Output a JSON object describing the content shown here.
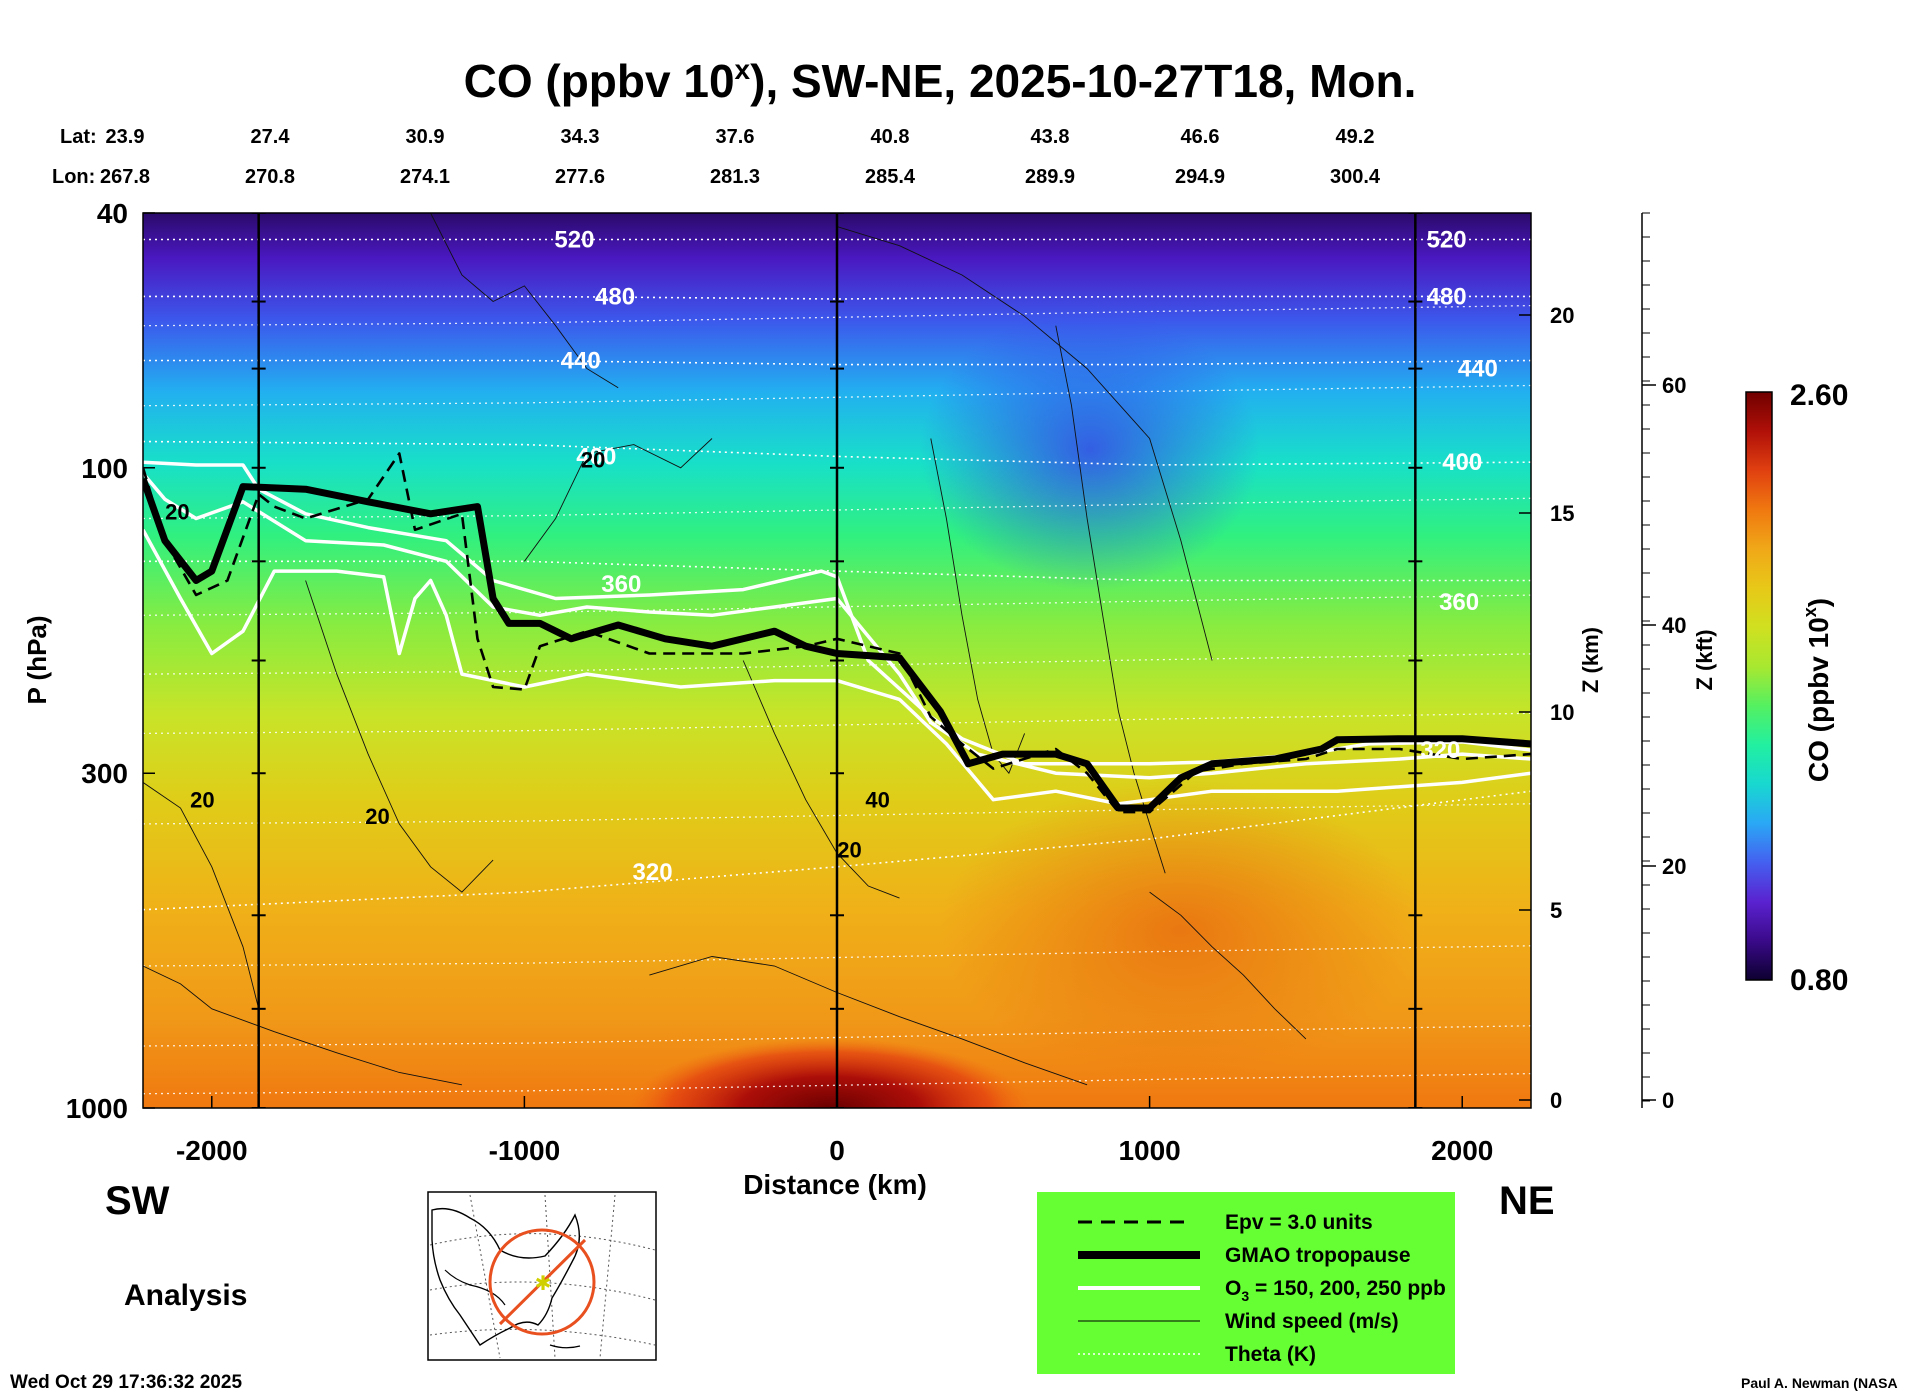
{
  "title": {
    "prefix": "CO (ppbv 10",
    "sup": "x",
    "suffix": "), SW-NE, 2025-10-27T18, Mon."
  },
  "coords": {
    "lat_label": "Lat:",
    "lon_label": "Lon:",
    "lat": [
      "23.9",
      "27.4",
      "30.9",
      "34.3",
      "37.6",
      "40.8",
      "43.8",
      "46.6",
      "49.2"
    ],
    "lon": [
      "267.8",
      "270.8",
      "274.1",
      "277.6",
      "281.3",
      "285.4",
      "289.9",
      "294.9",
      "300.4"
    ]
  },
  "direction": {
    "left": "SW",
    "right": "NE"
  },
  "analysis_label": "Analysis",
  "timestamp": "Wed Oct 29 17:36:32 2025",
  "credit": "Paul A. Newman (NASA",
  "legend": {
    "items": [
      {
        "label": "Epv = 3.0 units",
        "style": "dashed"
      },
      {
        "label": "GMAO tropopause",
        "style": "thick"
      },
      {
        "label": "O",
        "sub": "3",
        "label_rest": " = 150, 200, 250 ppb",
        "style": "white"
      },
      {
        "label": "Wind speed (m/s)",
        "style": "thin"
      },
      {
        "label": "Theta (K)",
        "style": "dotted"
      }
    ],
    "background": "#66ff33"
  },
  "colorbar": {
    "max_label": "2.60",
    "min_label": "0.80",
    "title_prefix": "CO (ppbv 10",
    "title_sup": "x",
    "title_suffix": ")",
    "colors": [
      "#0d0030",
      "#3a0a8a",
      "#5a22d0",
      "#4460f0",
      "#2aa8f5",
      "#18d8d0",
      "#22f0a0",
      "#55f060",
      "#a8e830",
      "#d0e020",
      "#e8c818",
      "#f0a818",
      "#f07810",
      "#e04010",
      "#b01008",
      "#700000"
    ]
  },
  "chart_data": {
    "type": "heatmap",
    "title": "CO (ppbv 10^x), SW-NE, 2025-10-27T18, Mon.",
    "xlabel": "Distance (km)",
    "ylabel": "P (hPa)",
    "y2label": "Z (km)",
    "y3label": "Z (kft)",
    "x_range": [
      -2220,
      2220
    ],
    "y_range_hpa": [
      1000,
      40
    ],
    "y_scale": "log",
    "x_ticks": [
      -2000,
      -1000,
      0,
      1000,
      2000
    ],
    "x_tick_labels": [
      "-2000",
      "-1000",
      "0",
      "1000",
      "2000"
    ],
    "y_ticks": [
      1000,
      300,
      100,
      40
    ],
    "y_tick_labels": [
      "1000",
      "300",
      "100",
      "40"
    ],
    "z_km_ticks": [
      "0",
      "5",
      "10",
      "15",
      "20"
    ],
    "z_kft_ticks": [
      "0",
      "20",
      "40",
      "60"
    ],
    "colorbar_range": [
      0.8,
      2.6
    ],
    "vertical_lines_km": [
      -1850,
      0,
      1850
    ],
    "theta_contours": [
      {
        "label": "520",
        "points": [
          [
            -2220,
            44
          ],
          [
            -1000,
            44
          ],
          [
            0,
            44
          ],
          [
            1000,
            44
          ],
          [
            2220,
            44
          ]
        ]
      },
      {
        "label": "480",
        "points": [
          [
            -2220,
            54
          ],
          [
            -1000,
            54
          ],
          [
            0,
            54.5
          ],
          [
            1000,
            54
          ],
          [
            2220,
            54
          ]
        ]
      },
      {
        "label": "440",
        "points": [
          [
            -2220,
            68
          ],
          [
            -1000,
            68
          ],
          [
            0,
            69
          ],
          [
            1000,
            69
          ],
          [
            2220,
            68
          ]
        ]
      },
      {
        "label": "400",
        "points": [
          [
            -2220,
            91
          ],
          [
            -1000,
            92
          ],
          [
            0,
            96
          ],
          [
            1000,
            99
          ],
          [
            2220,
            98
          ]
        ]
      },
      {
        "label": "360",
        "points": [
          [
            -2220,
            140
          ],
          [
            -1000,
            140
          ],
          [
            0,
            145
          ],
          [
            1000,
            150
          ],
          [
            2220,
            150
          ]
        ]
      },
      {
        "label": "320",
        "points": [
          [
            -2220,
            490
          ],
          [
            -1000,
            460
          ],
          [
            0,
            420
          ],
          [
            1000,
            380
          ],
          [
            2220,
            320
          ]
        ]
      }
    ],
    "contour_labels": [
      {
        "text": "520",
        "x": -840,
        "y": 44
      },
      {
        "text": "480",
        "x": -710,
        "y": 54
      },
      {
        "text": "440",
        "x": -820,
        "y": 68
      },
      {
        "text": "400",
        "x": -770,
        "y": 96
      },
      {
        "text": "360",
        "x": -690,
        "y": 152
      },
      {
        "text": "320",
        "x": -590,
        "y": 428
      },
      {
        "text": "520",
        "x": 1950,
        "y": 44
      },
      {
        "text": "480",
        "x": 1950,
        "y": 54
      },
      {
        "text": "440",
        "x": 2050,
        "y": 70
      },
      {
        "text": "400",
        "x": 2000,
        "y": 98
      },
      {
        "text": "360",
        "x": 1990,
        "y": 162
      },
      {
        "text": "320",
        "x": 1930,
        "y": 276
      }
    ],
    "wind_labels": [
      {
        "text": "20",
        "x": -2110,
        "y": 117
      },
      {
        "text": "20",
        "x": -780,
        "y": 97
      },
      {
        "text": "20",
        "x": -2030,
        "y": 330
      },
      {
        "text": "20",
        "x": -1470,
        "y": 350
      },
      {
        "text": "40",
        "x": 130,
        "y": 330
      },
      {
        "text": "20",
        "x": 40,
        "y": 395
      }
    ],
    "tropopause": [
      [
        -2220,
        104
      ],
      [
        -2150,
        130
      ],
      [
        -2050,
        150
      ],
      [
        -2000,
        145
      ],
      [
        -1900,
        107
      ],
      [
        -1700,
        108
      ],
      [
        -1500,
        113
      ],
      [
        -1300,
        118
      ],
      [
        -1150,
        115
      ],
      [
        -1100,
        160
      ],
      [
        -1050,
        175
      ],
      [
        -950,
        175
      ],
      [
        -850,
        185
      ],
      [
        -700,
        176
      ],
      [
        -550,
        185
      ],
      [
        -400,
        190
      ],
      [
        -200,
        180
      ],
      [
        -100,
        190
      ],
      [
        0,
        195
      ],
      [
        200,
        198
      ],
      [
        330,
        240
      ],
      [
        420,
        290
      ],
      [
        530,
        280
      ],
      [
        700,
        280
      ],
      [
        800,
        290
      ],
      [
        900,
        340
      ],
      [
        1000,
        340
      ],
      [
        1100,
        305
      ],
      [
        1200,
        290
      ],
      [
        1400,
        285
      ],
      [
        1550,
        275
      ],
      [
        1600,
        266
      ],
      [
        1800,
        265
      ],
      [
        2000,
        265
      ],
      [
        2220,
        270
      ]
    ],
    "epv": [
      [
        -2220,
        100
      ],
      [
        -2150,
        130
      ],
      [
        -2050,
        158
      ],
      [
        -1950,
        150
      ],
      [
        -1850,
        110
      ],
      [
        -1800,
        115
      ],
      [
        -1700,
        120
      ],
      [
        -1500,
        112
      ],
      [
        -1400,
        95
      ],
      [
        -1350,
        125
      ],
      [
        -1200,
        118
      ],
      [
        -1150,
        185
      ],
      [
        -1100,
        220
      ],
      [
        -1000,
        222
      ],
      [
        -950,
        190
      ],
      [
        -800,
        180
      ],
      [
        -600,
        195
      ],
      [
        -300,
        195
      ],
      [
        -100,
        190
      ],
      [
        0,
        185
      ],
      [
        100,
        190
      ],
      [
        200,
        195
      ],
      [
        300,
        245
      ],
      [
        400,
        270
      ],
      [
        500,
        295
      ],
      [
        700,
        275
      ],
      [
        800,
        300
      ],
      [
        900,
        345
      ],
      [
        1000,
        345
      ],
      [
        1150,
        298
      ],
      [
        1300,
        290
      ],
      [
        1500,
        285
      ],
      [
        1600,
        275
      ],
      [
        1800,
        275
      ],
      [
        2000,
        285
      ],
      [
        2220,
        280
      ]
    ],
    "o3_lines": [
      [
        [
          -2220,
          98
        ],
        [
          -2050,
          99
        ],
        [
          -1900,
          99
        ],
        [
          -1850,
          108
        ],
        [
          -1700,
          118
        ],
        [
          -1500,
          124
        ],
        [
          -1250,
          130
        ],
        [
          -1100,
          150
        ],
        [
          -900,
          160
        ],
        [
          -600,
          158
        ],
        [
          -300,
          155
        ],
        [
          -50,
          145
        ],
        [
          0,
          148
        ],
        [
          100,
          200
        ],
        [
          300,
          245
        ],
        [
          400,
          265
        ],
        [
          600,
          290
        ],
        [
          800,
          290
        ],
        [
          1000,
          290
        ],
        [
          1200,
          288
        ],
        [
          1500,
          280
        ],
        [
          1700,
          270
        ],
        [
          2000,
          268
        ],
        [
          2220,
          276
        ]
      ],
      [
        [
          -2220,
          102
        ],
        [
          -2150,
          112
        ],
        [
          -2050,
          120
        ],
        [
          -1900,
          113
        ],
        [
          -1700,
          130
        ],
        [
          -1450,
          132
        ],
        [
          -1250,
          140
        ],
        [
          -1100,
          165
        ],
        [
          -950,
          170
        ],
        [
          -800,
          165
        ],
        [
          -600,
          168
        ],
        [
          -400,
          170
        ],
        [
          -200,
          165
        ],
        [
          0,
          160
        ],
        [
          200,
          210
        ],
        [
          300,
          250
        ],
        [
          450,
          280
        ],
        [
          700,
          300
        ],
        [
          1000,
          305
        ],
        [
          1200,
          300
        ],
        [
          1500,
          290
        ],
        [
          1800,
          285
        ],
        [
          2000,
          280
        ],
        [
          2220,
          285
        ]
      ],
      [
        [
          -2220,
          125
        ],
        [
          -2100,
          160
        ],
        [
          -2000,
          195
        ],
        [
          -1900,
          180
        ],
        [
          -1800,
          145
        ],
        [
          -1600,
          145
        ],
        [
          -1450,
          148
        ],
        [
          -1400,
          195
        ],
        [
          -1350,
          160
        ],
        [
          -1300,
          150
        ],
        [
          -1250,
          170
        ],
        [
          -1200,
          210
        ],
        [
          -1000,
          220
        ],
        [
          -800,
          210
        ],
        [
          -500,
          220
        ],
        [
          -200,
          215
        ],
        [
          0,
          215
        ],
        [
          200,
          230
        ],
        [
          350,
          270
        ],
        [
          500,
          330
        ],
        [
          700,
          320
        ],
        [
          900,
          335
        ],
        [
          1000,
          330
        ],
        [
          1200,
          320
        ],
        [
          1600,
          320
        ],
        [
          2000,
          310
        ],
        [
          2220,
          300
        ]
      ]
    ]
  }
}
